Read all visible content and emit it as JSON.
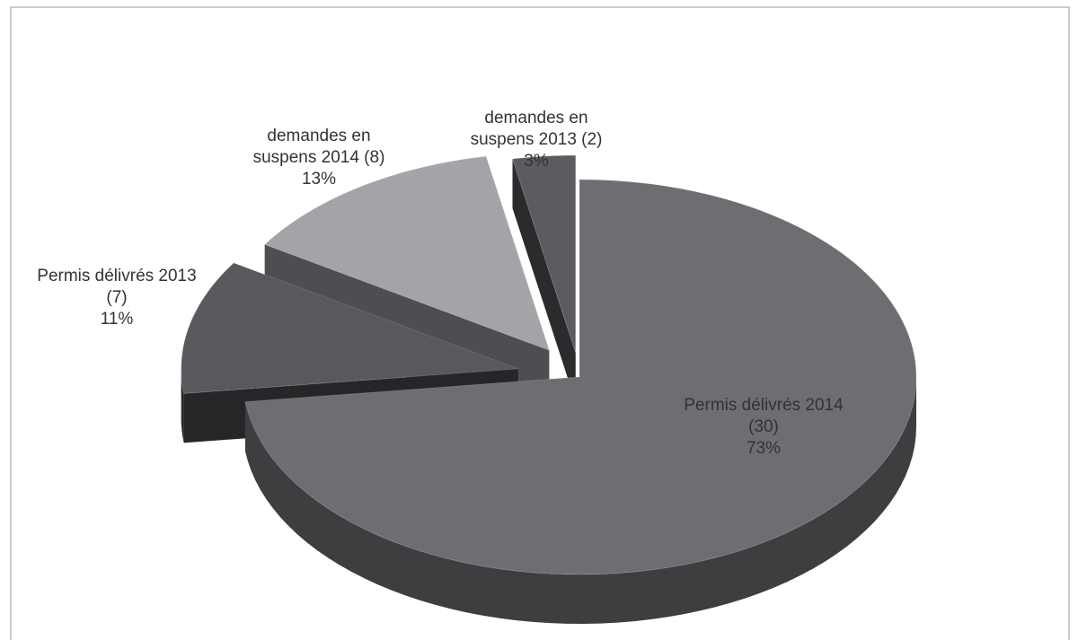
{
  "chart_data": {
    "type": "pie3d",
    "categories": [
      "Permis délivrés 2014 (30)",
      "Permis délivrés 2013 (7)",
      "demandes en suspens 2014 (8)",
      "demandes en suspens 2013 (2)"
    ],
    "values": [
      73,
      11,
      13,
      3
    ],
    "value_labels": [
      "73%",
      "11%",
      "13%",
      "3%"
    ],
    "colors": [
      "#6d6e71",
      "#58595c",
      "#a2a4a7",
      "#5b5c5f"
    ],
    "wall_colors": [
      "#3d3e40",
      "#262628",
      "#4d4e51",
      "#2b2b2d"
    ]
  }
}
